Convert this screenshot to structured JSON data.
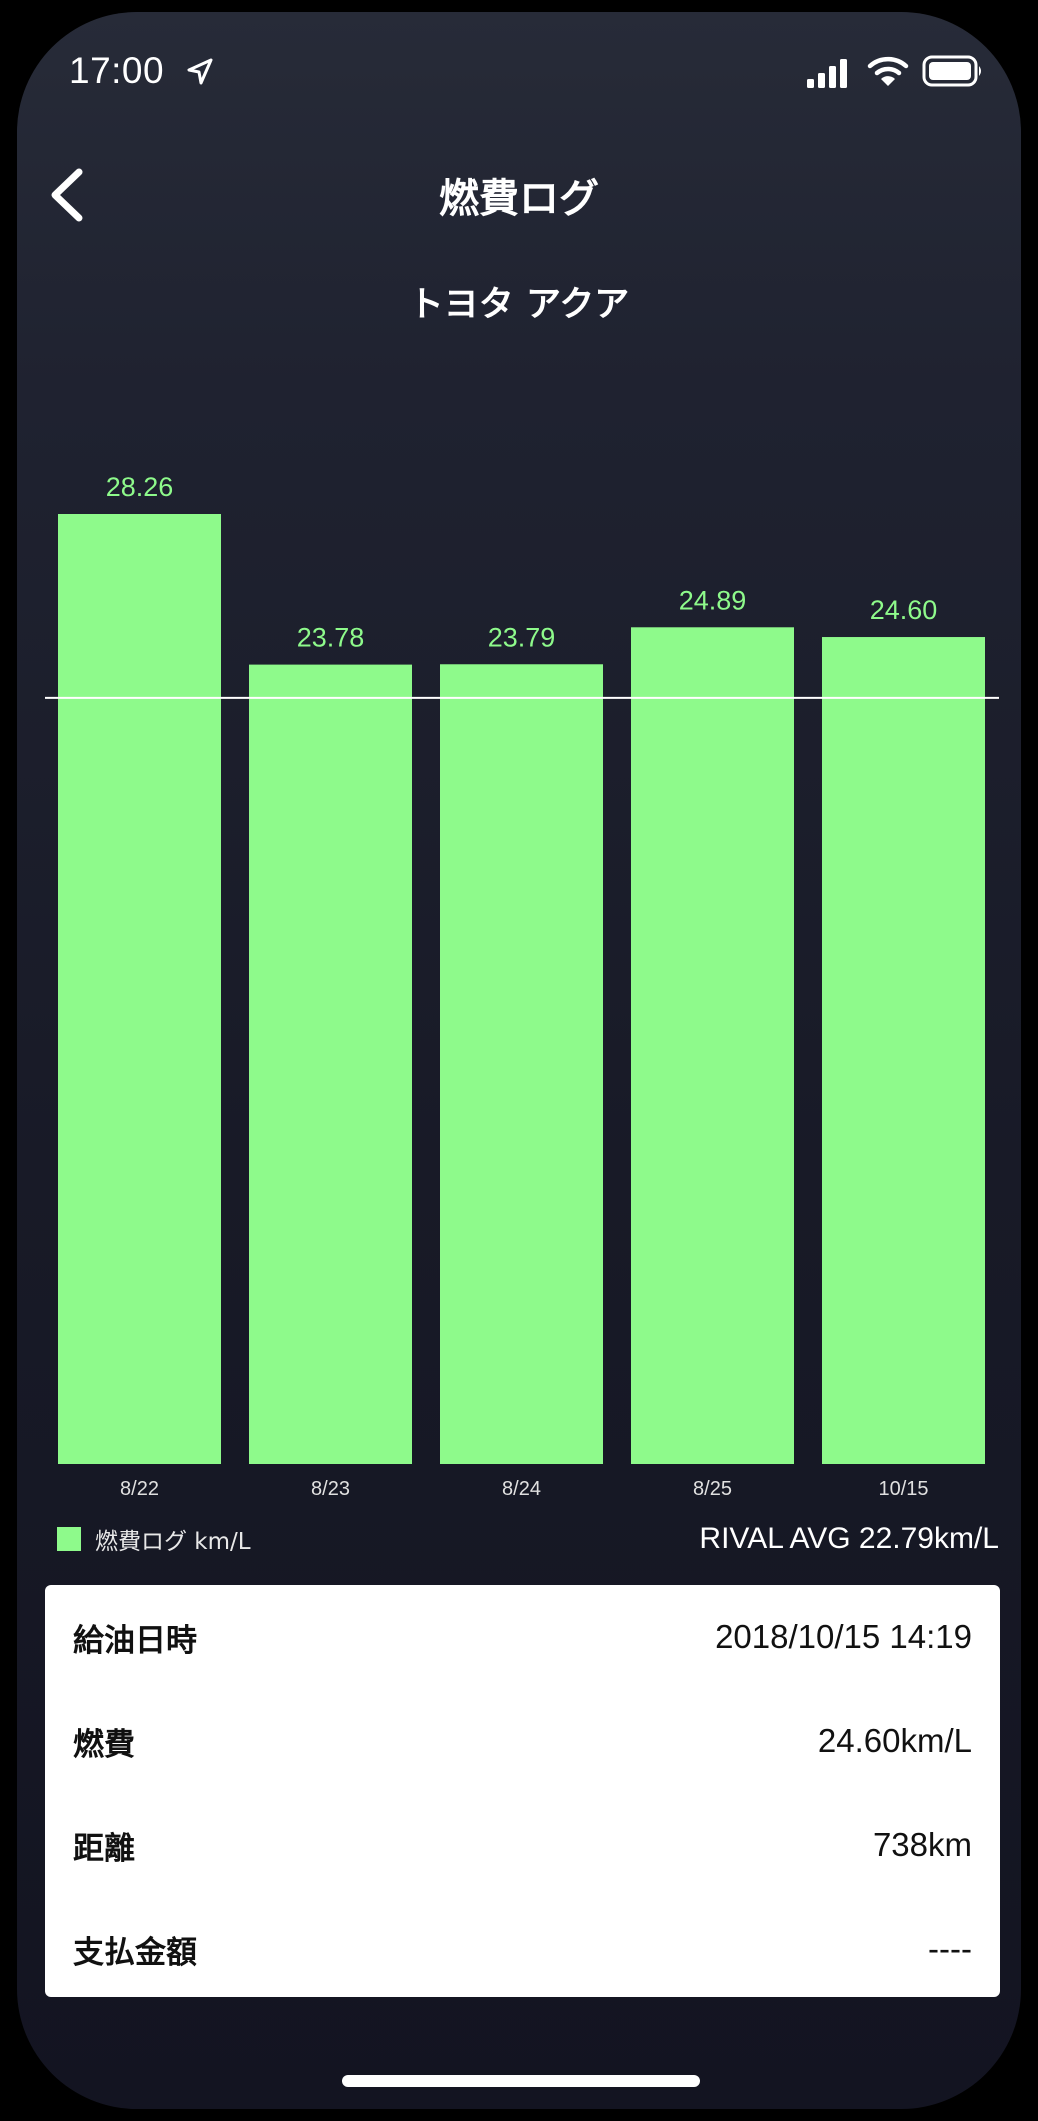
{
  "status": {
    "time": "17:00",
    "icons": [
      "location-arrow-icon",
      "signal-icon",
      "wifi-icon",
      "battery-icon"
    ]
  },
  "nav": {
    "title": "燃費ログ",
    "back_icon": "chevron-left-icon"
  },
  "vehicle": {
    "name": "トヨタ アクア"
  },
  "chart_data": {
    "type": "bar",
    "categories": [
      "8/22",
      "8/23",
      "8/24",
      "8/25",
      "10/15"
    ],
    "values": [
      28.26,
      23.78,
      23.79,
      24.89,
      24.6
    ],
    "value_labels": [
      "28.26",
      "23.78",
      "23.79",
      "24.89",
      "24.60"
    ],
    "reference_line": 22.79,
    "ylim": [
      0,
      28.26
    ],
    "bar_color": "#8efa8b",
    "label_color": "#8efa8b",
    "legend": {
      "label": "燃費ログ km/L",
      "position": "bottom-left"
    },
    "grid": false
  },
  "rival": {
    "text": "RIVAL AVG 22.79km/L"
  },
  "details": [
    {
      "label": "給油日時",
      "value": "2018/10/15 14:19"
    },
    {
      "label": "燃費",
      "value": "24.60km/L"
    },
    {
      "label": "距離",
      "value": "738km"
    },
    {
      "label": "支払金額",
      "value": "----"
    }
  ],
  "colors": {
    "background": "#1b1d2b",
    "accent": "#8efa8b",
    "text": "#ffffff"
  }
}
